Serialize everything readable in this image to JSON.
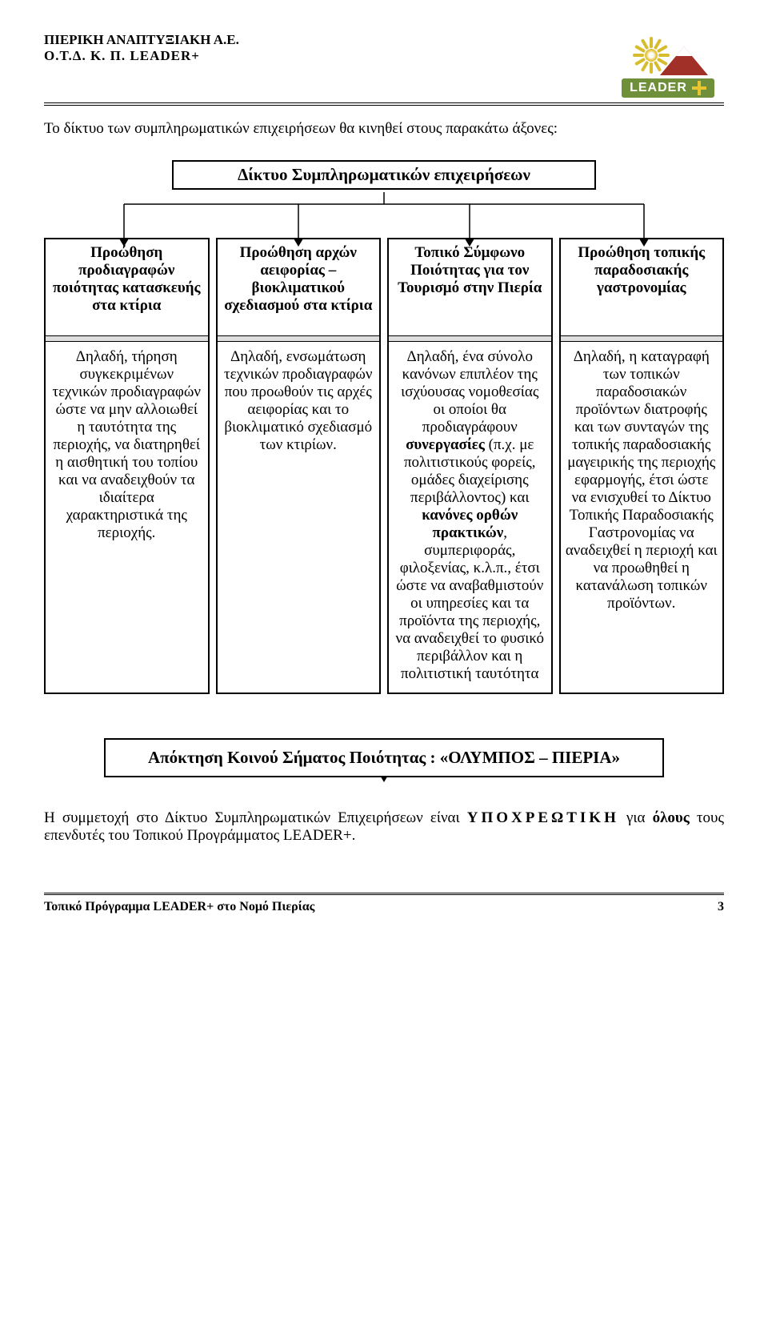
{
  "header": {
    "org_line1": "ΠΙΕΡΙΚΗ ΑΝΑΠΤΥΞΙΑΚΗ Α.Ε.",
    "org_line2": "Ο.Τ.Δ. Κ. Π. LEADER+",
    "badge_text": "LEADER"
  },
  "intro": "Το δίκτυο των συμπληρωματικών επιχειρήσεων θα κινηθεί στους παρακάτω άξονες:",
  "diagram": {
    "top_title": "Δίκτυο Συμπληρωματικών επιχειρήσεων",
    "columns": [
      {
        "title": "Προώθηση προδιαγραφών ποιότητας κατασκευής στα κτίρια",
        "body": "Δηλαδή, τήρηση συγκεκριμένων τεχνικών προδιαγραφών ώστε να μην αλλοιωθεί η ταυτότητα της περιοχής, να διατηρηθεί η αισθητική του τοπίου και να αναδειχθούν τα ιδιαίτερα χαρακτηριστικά της περιοχής."
      },
      {
        "title": "Προώθηση αρχών αειφορίας – βιοκλιματικού σχεδιασμού στα κτίρια",
        "body": "Δηλαδή, ενσωμάτωση τεχνικών προδιαγραφών που προωθούν τις αρχές αειφορίας και το βιοκλιματικό σχεδιασμό των κτιρίων."
      },
      {
        "title": "Τοπικό Σύμφωνο Ποιότητας για τον Τουρισμό στην Πιερία",
        "body_html": "Δηλαδή, ένα σύνολο κανόνων επιπλέον της ισχύουσας νομοθεσίας οι οποίοι θα προδιαγράφουν <b>συνεργασίες</b> (π.χ. με πολιτιστικούς φορείς, ομάδες διαχείρισης περιβάλλοντος) και <b>κανόνες ορθών πρακτικών</b>, συμπεριφοράς, φιλοξενίας, κ.λ.π., έτσι ώστε να αναβαθμιστούν οι υπηρεσίες και τα προϊόντα της περιοχής, να αναδειχθεί το φυσικό περιβάλλον και η πολιτιστική ταυτότητα"
      },
      {
        "title": "Προώθηση τοπικής παραδοσιακής γαστρονομίας",
        "body": "Δηλαδή, η καταγραφή των τοπικών παραδοσιακών προϊόντων διατροφής και των συνταγών της τοπικής παραδοσιακής μαγειρικής της περιοχής εφαρμογής, έτσι ώστε να ενισχυθεί το Δίκτυο Τοπικής Παραδοσιακής Γαστρονομίας να αναδειχθεί η περιοχή και να προωθηθεί η κατανάλωση τοπικών προϊόντων."
      }
    ],
    "bottom_title": "Απόκτηση Κοινού Σήματος Ποιότητας : «ΟΛΥΜΠΟΣ – ΠΙΕΡΙΑ»"
  },
  "closing_html": "Η συμμετοχή στο Δίκτυο Συμπληρωματικών Επιχειρήσεων είναι <span class=\"sp\">ΥΠΟΧΡΕΩΤΙΚΗ</span> για <b>όλους</b> τους επενδυτές του Τοπικού Προγράμματος LEADER+.",
  "footer": {
    "left": "Τοπικό Πρόγραμμα LEADER+ στο Νομό Πιερίας",
    "page": "3"
  },
  "colors": {
    "badge_bg": "#6f8f3a",
    "badge_text": "#ffffff",
    "accent_yellow": "#e9c531",
    "mountain": "#a13028",
    "separator_gray": "#dedede"
  }
}
